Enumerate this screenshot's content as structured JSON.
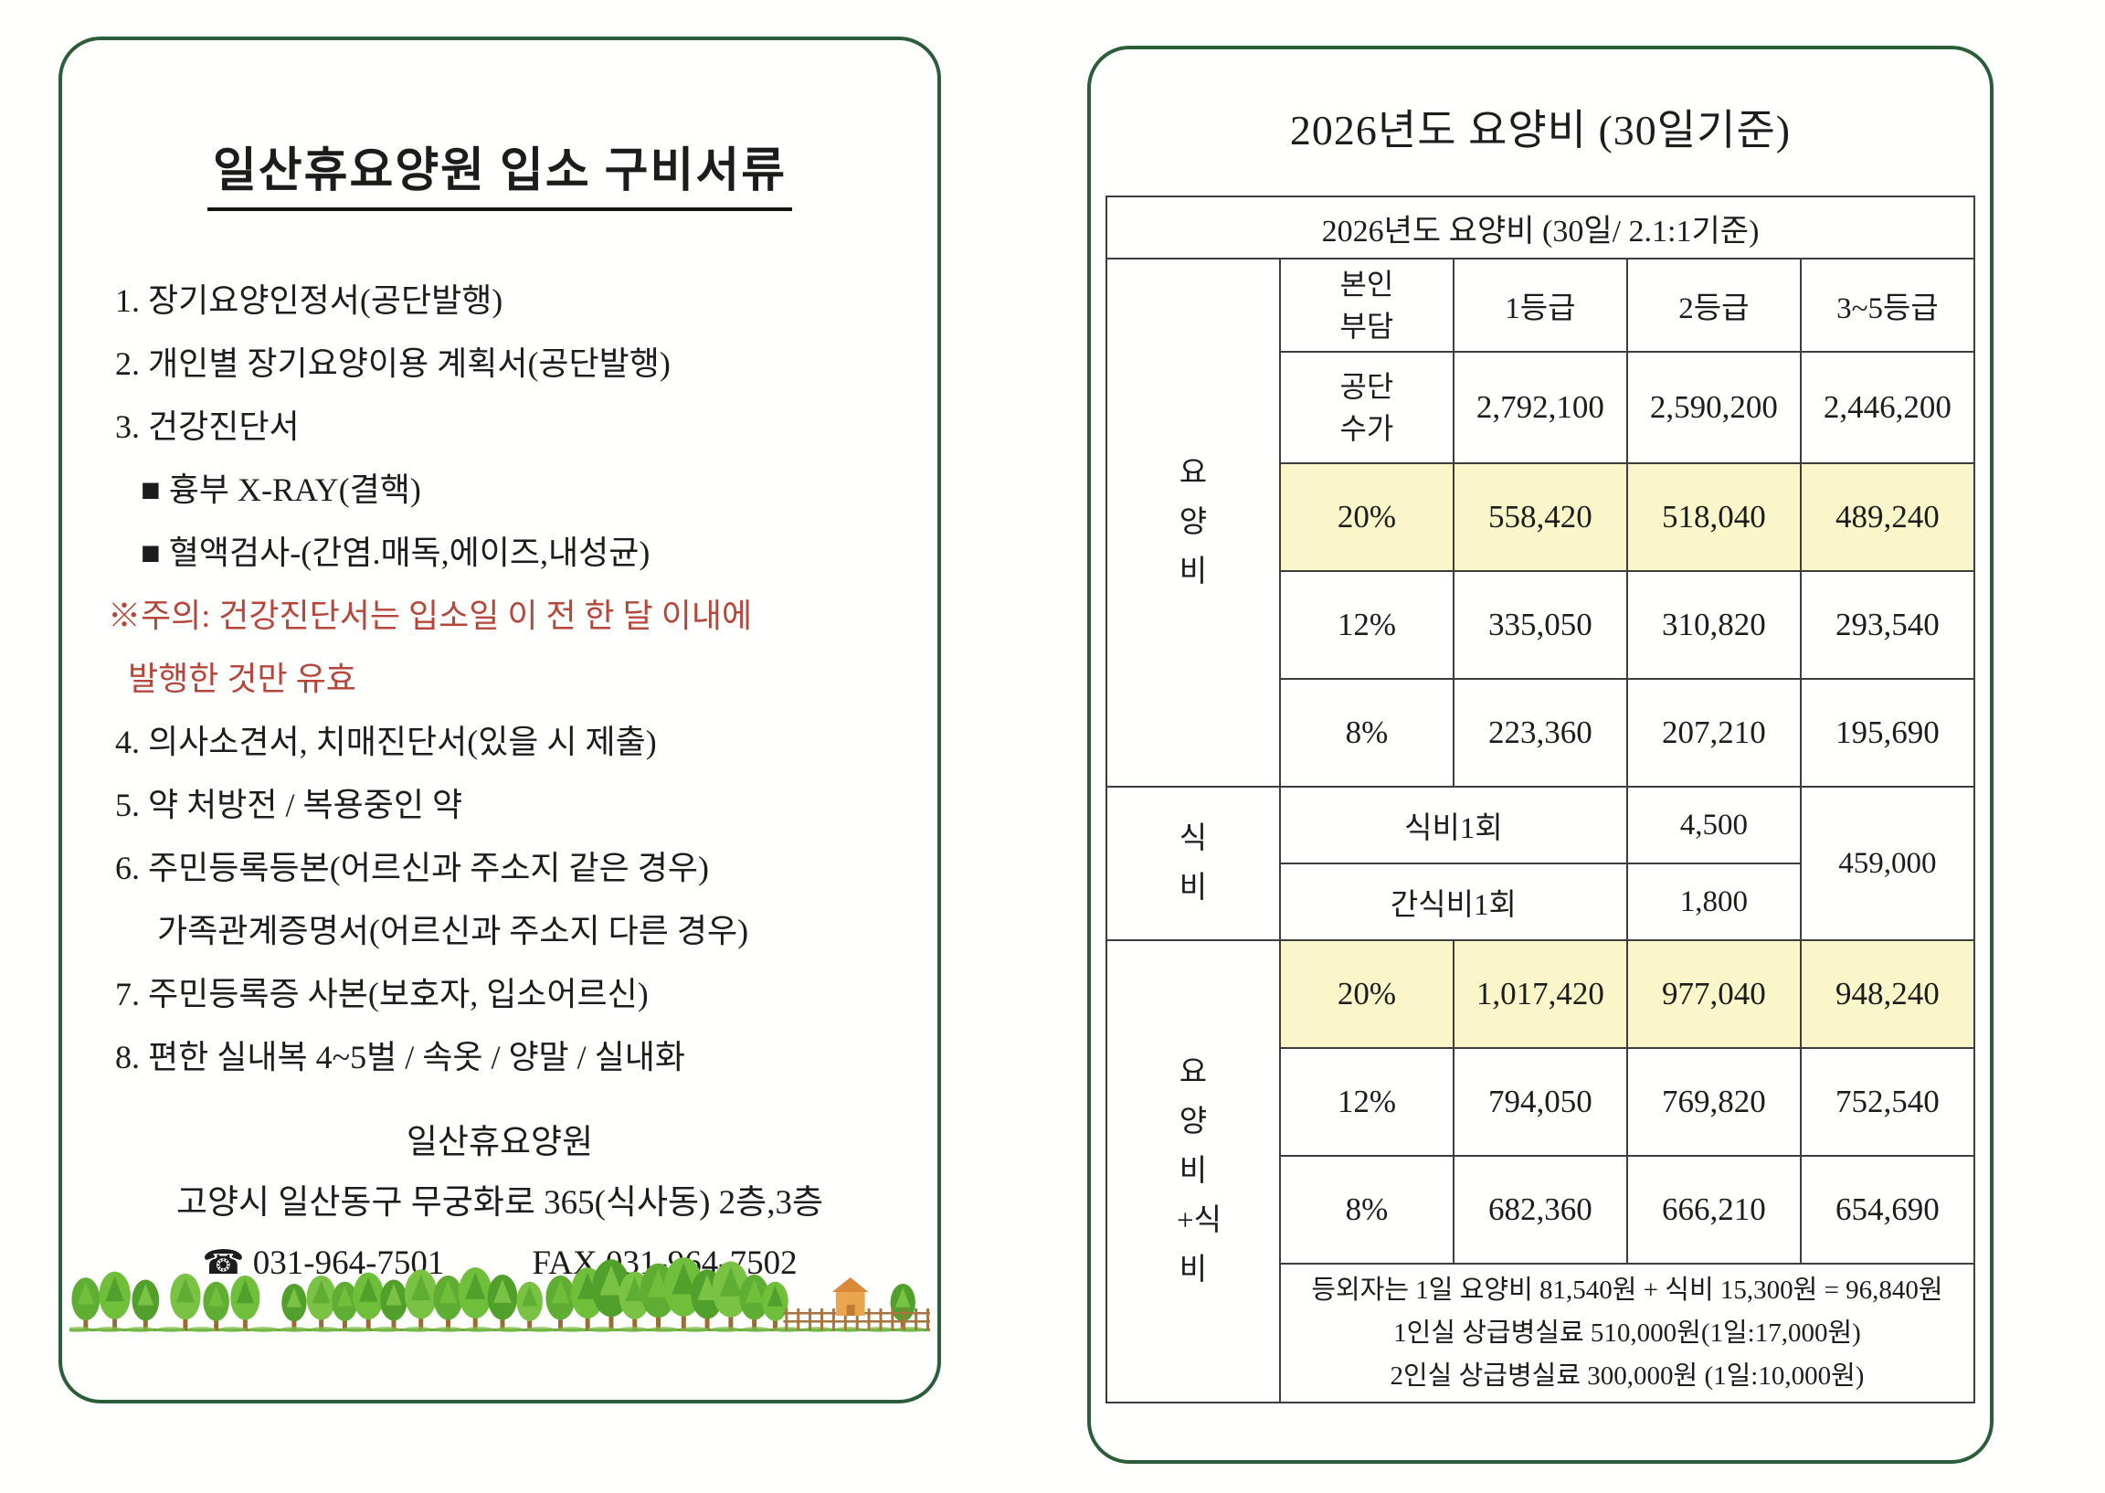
{
  "left_card": {
    "title": "일산휴요양원 입소 구비서류",
    "items": [
      {
        "text": "1. 장기요양인정서(공단발행)"
      },
      {
        "text": "2. 개인별 장기요양이용 계획서(공단발행)"
      },
      {
        "text": "3. 건강진단서"
      },
      {
        "text": "■ 흉부 X-RAY(결핵)"
      },
      {
        "text": "■ 혈액검사-(간염.매독,에이즈,내성균)"
      },
      {
        "text": "※주의: 건강진단서는 입소일 이 전 한 달 이내에"
      },
      {
        "text": "발행한 것만 유효"
      },
      {
        "text": "4. 의사소견서, 치매진단서(있을 시 제출)"
      },
      {
        "text": "5. 약 처방전 / 복용중인 약"
      },
      {
        "text": "6. 주민등록등본(어르신과 주소지 같은 경우)"
      },
      {
        "text": "가족관계증명서(어르신과 주소지 다른 경우)"
      },
      {
        "text": "7. 주민등록증 사본(보호자, 입소어르신)"
      },
      {
        "text": "8. 편한 실내복 4~5벌 / 속옷 / 양말 / 실내화"
      }
    ],
    "footer": {
      "name": "일산휴요양원",
      "address": "고양시 일산동구 무궁화로 365(식사동) 2층,3층",
      "phone": "☎ 031-964-7501",
      "fax": "FAX 031-964-7502"
    }
  },
  "right_card": {
    "title": "2026년도 요양비 (30일기준)",
    "table": {
      "title_row": "2026년도 요양비 (30일/ 2.1:1기준)",
      "care_label": "요양비",
      "own_burden_header": "본인부담",
      "grade_headers": [
        "1등급",
        "2등급",
        "3~5등급"
      ],
      "gongdan_label": "공단수가",
      "gongdan_values": [
        "2,792,100",
        "2,590,200",
        "2,446,200"
      ],
      "care_rows": [
        {
          "rate": "20%",
          "values": [
            "558,420",
            "518,040",
            "489,240"
          ],
          "highlight": true
        },
        {
          "rate": "12%",
          "values": [
            "335,050",
            "310,820",
            "293,540"
          ],
          "highlight": false
        },
        {
          "rate": "8%",
          "values": [
            "223,360",
            "207,210",
            "195,690"
          ],
          "highlight": false
        }
      ],
      "meal_label": "식비",
      "meal_rows": [
        {
          "label": "식비1회",
          "value": "4,500"
        },
        {
          "label": "간식비1회",
          "value": "1,800"
        }
      ],
      "meal_total": "459,000",
      "combined_label": "요양비+식비",
      "combined_rows": [
        {
          "rate": "20%",
          "values": [
            "1,017,420",
            "977,040",
            "948,240"
          ],
          "highlight": true
        },
        {
          "rate": "12%",
          "values": [
            "794,050",
            "769,820",
            "752,540"
          ],
          "highlight": false
        },
        {
          "rate": "8%",
          "values": [
            "682,360",
            "666,210",
            "654,690"
          ],
          "highlight": false
        }
      ],
      "notes": [
        "등외자는 1일 요양비 81,540원 + 식비 15,300원 = 96,840원",
        "1인실 상급병실료 510,000원(1일:17,000원)",
        "2인실 상급병실료 300,000원 (1일:10,000원)"
      ]
    },
    "highlight_color": "#fbf6c9",
    "border_color": "#2b5d38",
    "warning_color": "#b6453a"
  }
}
